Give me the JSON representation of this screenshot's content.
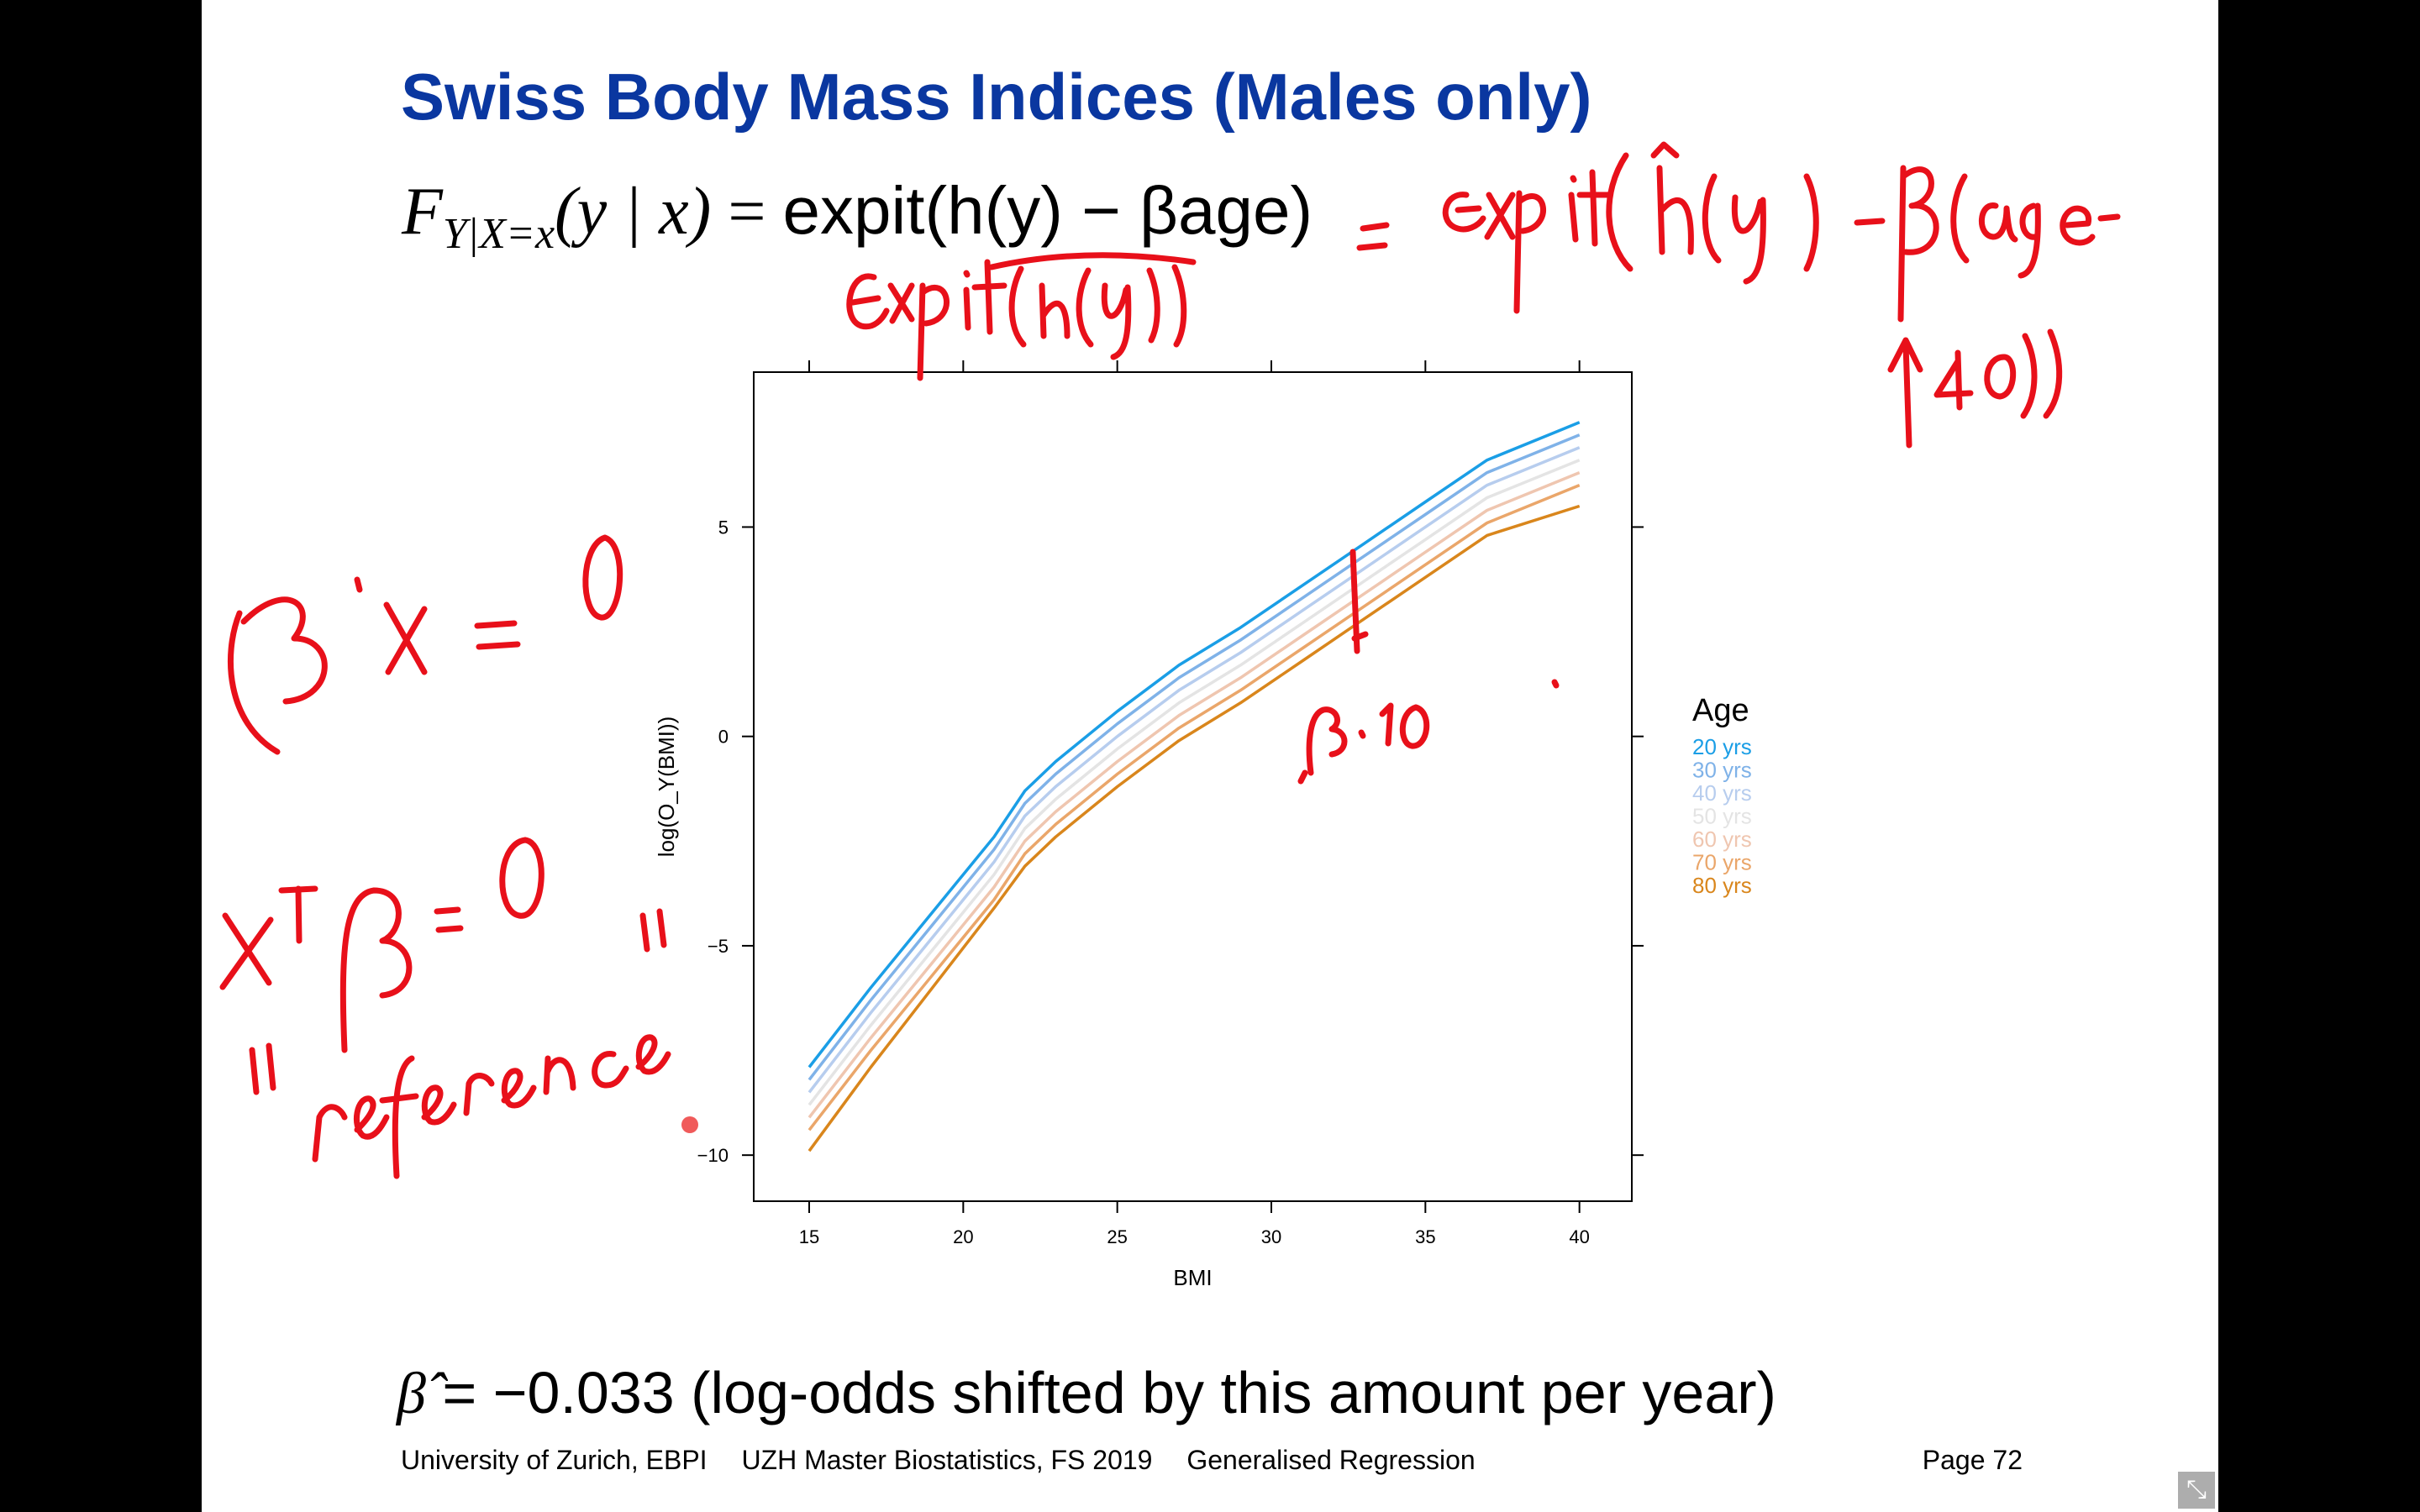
{
  "slide": {
    "title": "Swiss Body Mass Indices (Males only)",
    "formula": {
      "lhs_F": "F",
      "lhs_sub": "Y|X=x",
      "lhs_args": "(y | x)",
      "eq": "=",
      "rhs": "expit(h(y) − βage)"
    },
    "bottom_formula": {
      "beta_hat": "β̂",
      "text": "= −0.033 (log-odds shifted by this amount per year)"
    },
    "footer": {
      "institution": "University of Zurich, EBPI",
      "course": "UZH Master Biostatistics, FS 2019",
      "lecture": "Generalised Regression",
      "page": "Page 72"
    }
  },
  "chart_data": {
    "type": "line",
    "xlabel": "BMI",
    "ylabel": "log(O_Y(BMI))",
    "xlim": [
      13.2,
      41.7
    ],
    "ylim": [
      -11.1,
      8.7
    ],
    "xticks": [
      "15",
      "20",
      "25",
      "30",
      "35",
      "40"
    ],
    "xtick_values": [
      15,
      20,
      25,
      30,
      35,
      40
    ],
    "yticks": [
      "−10",
      "−5",
      "0",
      "5"
    ],
    "ytick_values": [
      -10,
      -5,
      0,
      5
    ],
    "grid": false,
    "legend_title": "Age",
    "legend_position": "right",
    "x": [
      15,
      17,
      19,
      21,
      22,
      23,
      25,
      27,
      29,
      31,
      33,
      35,
      37,
      40
    ],
    "series": [
      {
        "name": "20 yrs",
        "color": "#1a9ee6",
        "values": [
          -7.9,
          -6.0,
          -4.2,
          -2.4,
          -1.3,
          -0.6,
          0.6,
          1.7,
          2.6,
          3.6,
          4.6,
          5.6,
          6.6,
          7.5
        ]
      },
      {
        "name": "30 yrs",
        "color": "#7fb2e8",
        "values": [
          -8.2,
          -6.3,
          -4.5,
          -2.7,
          -1.6,
          -0.9,
          0.3,
          1.4,
          2.3,
          3.3,
          4.3,
          5.3,
          6.3,
          7.2
        ]
      },
      {
        "name": "40 yrs",
        "color": "#b7cdee",
        "values": [
          -8.5,
          -6.6,
          -4.8,
          -3.0,
          -1.9,
          -1.2,
          0.0,
          1.1,
          2.0,
          3.0,
          4.0,
          5.0,
          6.0,
          6.9
        ]
      },
      {
        "name": "50 yrs",
        "color": "#e4e4e4",
        "values": [
          -8.8,
          -6.9,
          -5.1,
          -3.3,
          -2.2,
          -1.5,
          -0.3,
          0.8,
          1.7,
          2.7,
          3.7,
          4.7,
          5.7,
          6.6
        ]
      },
      {
        "name": "60 yrs",
        "color": "#efc6b0",
        "values": [
          -9.1,
          -7.2,
          -5.4,
          -3.6,
          -2.5,
          -1.8,
          -0.6,
          0.5,
          1.4,
          2.4,
          3.4,
          4.4,
          5.4,
          6.3
        ]
      },
      {
        "name": "70 yrs",
        "color": "#eaa66a",
        "values": [
          -9.4,
          -7.5,
          -5.7,
          -3.9,
          -2.8,
          -2.1,
          -0.9,
          0.2,
          1.1,
          2.1,
          3.1,
          4.1,
          5.1,
          6.0
        ]
      },
      {
        "name": "80 yrs",
        "color": "#d9861c",
        "values": [
          -9.9,
          -7.9,
          -6.0,
          -4.1,
          -3.1,
          -2.4,
          -1.2,
          -0.1,
          0.8,
          1.8,
          2.8,
          3.8,
          4.8,
          5.5
        ]
      }
    ]
  },
  "annotations": {
    "color": "#e8101a",
    "note_rhs": "= expit(ĥ(y) − β(age − 40))",
    "note_arrow": "40",
    "note_under": "expit(h(y))",
    "note_beta_x": "β'x = 0",
    "note_xt_beta": "xᵀβ = 0",
    "note_reference": "\"reference\"",
    "note_beta10": "β·10"
  },
  "controls": {
    "exit_fullscreen_icon": "exit-fullscreen-icon"
  }
}
